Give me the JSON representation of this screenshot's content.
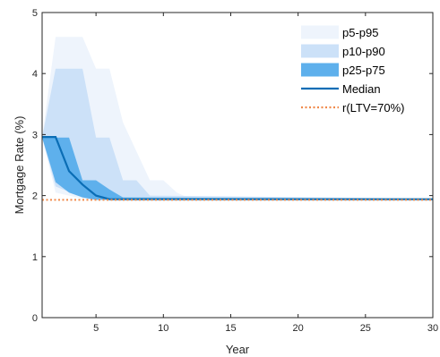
{
  "chart_data": {
    "type": "area",
    "xlabel": "Year",
    "ylabel": "Mortgage Rate (%)",
    "xlim": [
      1,
      30
    ],
    "ylim": [
      0,
      5
    ],
    "xticks": [
      5,
      10,
      15,
      20,
      25,
      30
    ],
    "yticks": [
      0,
      1,
      2,
      3,
      4,
      5
    ],
    "grid": false,
    "legend_position": "top-right",
    "bands": [
      {
        "name": "p5-p95",
        "color": "#eef4fc",
        "x": [
          1,
          2,
          4,
          5,
          6,
          7,
          9,
          10,
          11,
          12,
          30
        ],
        "lower": [
          2.95,
          2.05,
          1.95,
          1.93,
          1.93,
          1.93,
          1.93,
          1.93,
          1.93,
          1.93,
          1.93
        ],
        "upper": [
          2.95,
          4.6,
          4.6,
          4.08,
          4.08,
          3.2,
          2.25,
          2.25,
          2.05,
          1.95,
          1.95
        ]
      },
      {
        "name": "p10-p90",
        "color": "#cce1f8",
        "x": [
          1,
          2,
          4,
          5,
          6,
          7,
          8,
          9,
          30
        ],
        "lower": [
          2.95,
          2.15,
          1.97,
          1.93,
          1.93,
          1.93,
          1.93,
          1.93,
          1.93
        ],
        "upper": [
          2.95,
          4.08,
          4.08,
          2.95,
          2.95,
          2.25,
          2.25,
          2.0,
          1.95
        ]
      },
      {
        "name": "p25-p75",
        "color": "#5eb0ec",
        "x": [
          1,
          2,
          3,
          4,
          5,
          6,
          7,
          30
        ],
        "lower": [
          2.95,
          2.22,
          2.05,
          1.97,
          1.93,
          1.93,
          1.93,
          1.93
        ],
        "upper": [
          2.95,
          2.95,
          2.95,
          2.25,
          2.25,
          2.1,
          1.97,
          1.95
        ]
      }
    ],
    "series": [
      {
        "name": "Median",
        "color": "#0a6db5",
        "style": "solid",
        "x": [
          1,
          2,
          3,
          4,
          5,
          6,
          30
        ],
        "y": [
          2.96,
          2.96,
          2.4,
          2.18,
          2.0,
          1.94,
          1.94
        ]
      },
      {
        "name": "r(LTV=70%)",
        "color": "#f08a4b",
        "style": "dotted",
        "x": [
          1,
          30
        ],
        "y": [
          1.93,
          1.93
        ]
      }
    ]
  }
}
